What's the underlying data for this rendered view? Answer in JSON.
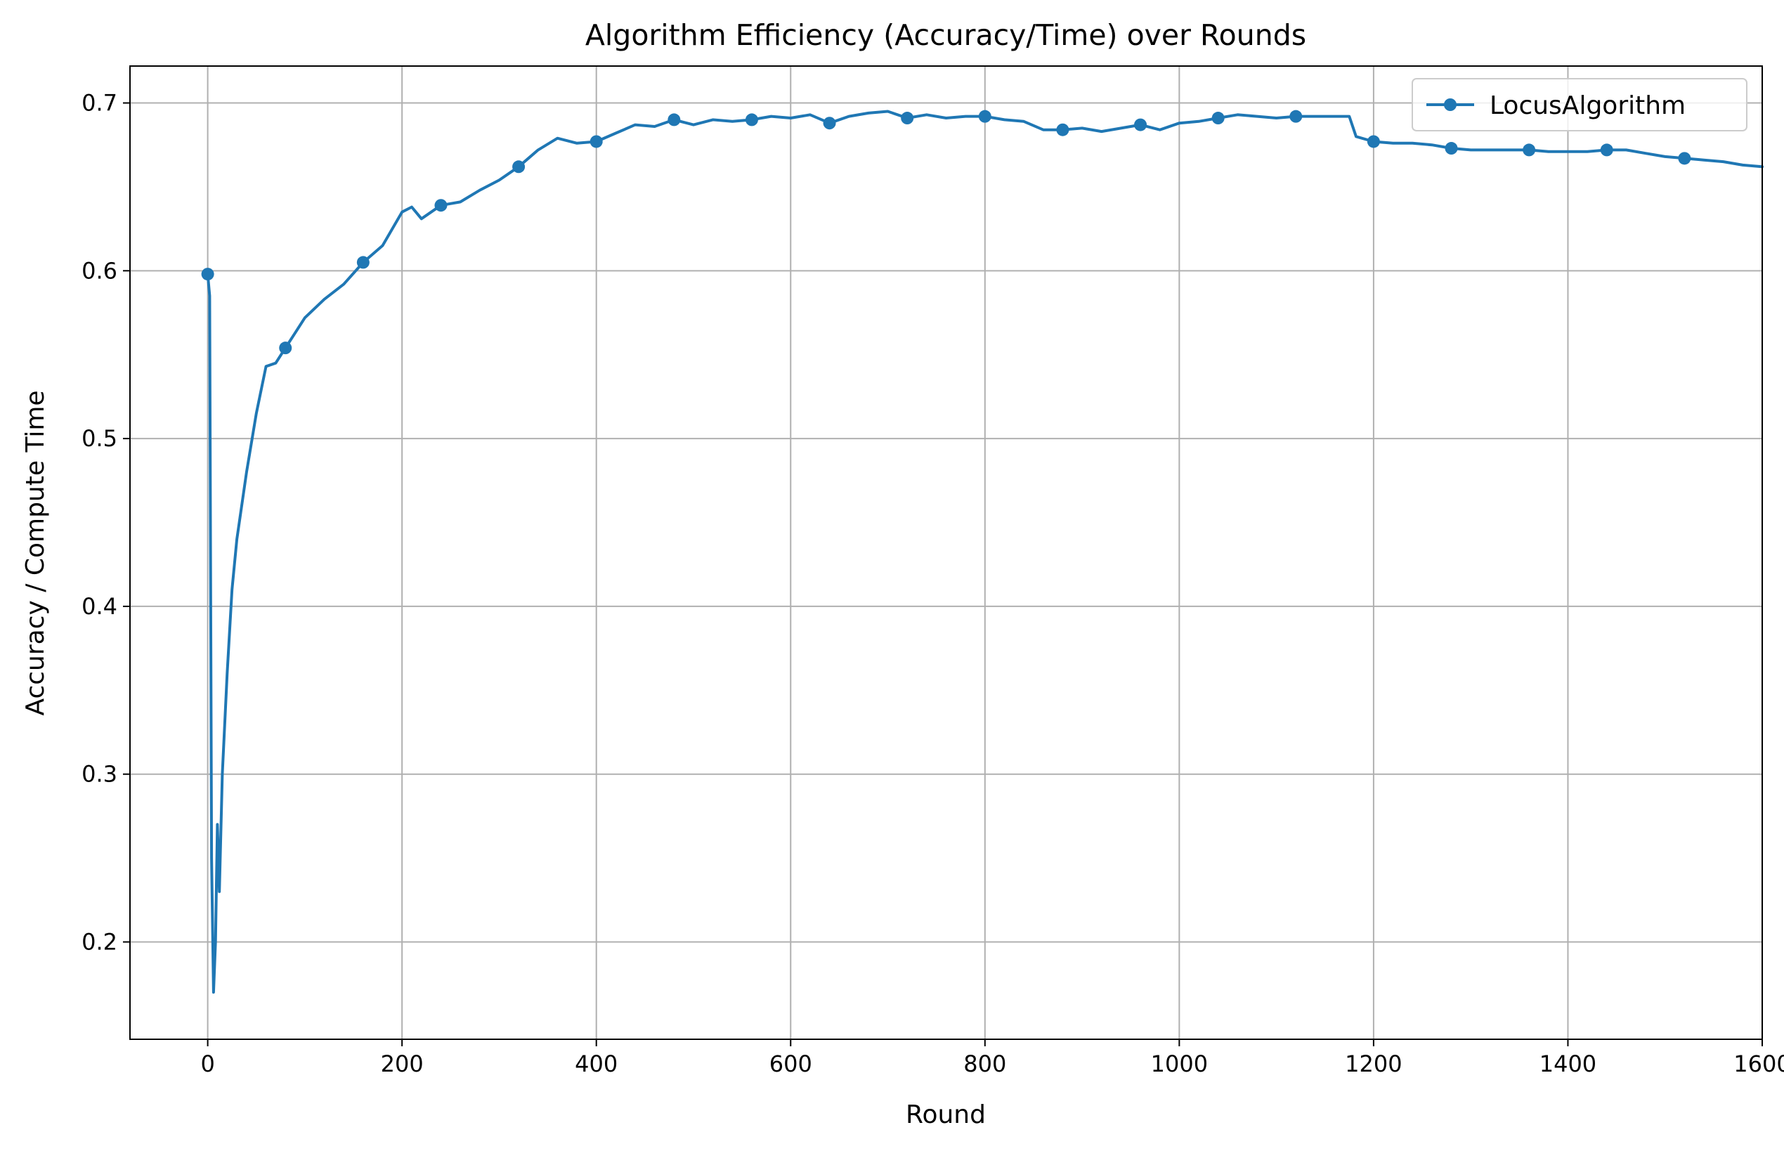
{
  "chart_data": {
    "type": "line",
    "title": "Algorithm Efficiency (Accuracy/Time) over Rounds",
    "xlabel": "Round",
    "ylabel": "Accuracy / Compute Time",
    "xlim": [
      -80,
      1600
    ],
    "ylim": [
      0.142,
      0.722
    ],
    "xticks": [
      0,
      200,
      400,
      600,
      800,
      1000,
      1200,
      1400,
      1600
    ],
    "xtick_labels": [
      "0",
      "200",
      "400",
      "600",
      "800",
      "1000",
      "1200",
      "1400",
      "1600"
    ],
    "yticks": [
      0.2,
      0.3,
      0.4,
      0.5,
      0.6,
      0.7
    ],
    "ytick_labels": [
      "0.2",
      "0.3",
      "0.4",
      "0.5",
      "0.6",
      "0.7"
    ],
    "grid": true,
    "legend_position": "top-right",
    "series": [
      {
        "name": "LocusAlgorithm",
        "color": "#1f77b4",
        "marker_every": 80,
        "points": [
          [
            0,
            0.598
          ],
          [
            2,
            0.585
          ],
          [
            4,
            0.25
          ],
          [
            6,
            0.17
          ],
          [
            8,
            0.2
          ],
          [
            10,
            0.27
          ],
          [
            12,
            0.23
          ],
          [
            15,
            0.3
          ],
          [
            20,
            0.36
          ],
          [
            25,
            0.41
          ],
          [
            30,
            0.44
          ],
          [
            40,
            0.48
          ],
          [
            50,
            0.515
          ],
          [
            60,
            0.543
          ],
          [
            70,
            0.545
          ],
          [
            80,
            0.554
          ],
          [
            90,
            0.563
          ],
          [
            100,
            0.572
          ],
          [
            120,
            0.583
          ],
          [
            140,
            0.592
          ],
          [
            160,
            0.605
          ],
          [
            180,
            0.615
          ],
          [
            200,
            0.635
          ],
          [
            210,
            0.638
          ],
          [
            220,
            0.631
          ],
          [
            240,
            0.639
          ],
          [
            260,
            0.641
          ],
          [
            280,
            0.648
          ],
          [
            300,
            0.654
          ],
          [
            320,
            0.662
          ],
          [
            340,
            0.672
          ],
          [
            360,
            0.679
          ],
          [
            380,
            0.676
          ],
          [
            400,
            0.677
          ],
          [
            420,
            0.682
          ],
          [
            440,
            0.687
          ],
          [
            460,
            0.686
          ],
          [
            480,
            0.69
          ],
          [
            500,
            0.687
          ],
          [
            520,
            0.69
          ],
          [
            540,
            0.689
          ],
          [
            560,
            0.69
          ],
          [
            580,
            0.692
          ],
          [
            600,
            0.691
          ],
          [
            620,
            0.693
          ],
          [
            640,
            0.688
          ],
          [
            660,
            0.692
          ],
          [
            680,
            0.694
          ],
          [
            700,
            0.695
          ],
          [
            720,
            0.691
          ],
          [
            740,
            0.693
          ],
          [
            760,
            0.691
          ],
          [
            780,
            0.692
          ],
          [
            800,
            0.692
          ],
          [
            820,
            0.69
          ],
          [
            840,
            0.689
          ],
          [
            860,
            0.684
          ],
          [
            880,
            0.684
          ],
          [
            900,
            0.685
          ],
          [
            920,
            0.683
          ],
          [
            940,
            0.685
          ],
          [
            960,
            0.687
          ],
          [
            980,
            0.684
          ],
          [
            1000,
            0.688
          ],
          [
            1020,
            0.689
          ],
          [
            1040,
            0.691
          ],
          [
            1060,
            0.693
          ],
          [
            1080,
            0.692
          ],
          [
            1100,
            0.691
          ],
          [
            1120,
            0.692
          ],
          [
            1140,
            0.692
          ],
          [
            1160,
            0.692
          ],
          [
            1175,
            0.692
          ],
          [
            1182,
            0.68
          ],
          [
            1200,
            0.677
          ],
          [
            1220,
            0.676
          ],
          [
            1240,
            0.676
          ],
          [
            1260,
            0.675
          ],
          [
            1280,
            0.673
          ],
          [
            1300,
            0.672
          ],
          [
            1320,
            0.672
          ],
          [
            1340,
            0.672
          ],
          [
            1360,
            0.672
          ],
          [
            1380,
            0.671
          ],
          [
            1400,
            0.671
          ],
          [
            1420,
            0.671
          ],
          [
            1440,
            0.672
          ],
          [
            1460,
            0.672
          ],
          [
            1480,
            0.67
          ],
          [
            1500,
            0.668
          ],
          [
            1520,
            0.667
          ],
          [
            1540,
            0.666
          ],
          [
            1560,
            0.665
          ],
          [
            1580,
            0.663
          ],
          [
            1600,
            0.662
          ]
        ],
        "markers": [
          [
            0,
            0.598
          ],
          [
            80,
            0.554
          ],
          [
            160,
            0.605
          ],
          [
            240,
            0.639
          ],
          [
            320,
            0.662
          ],
          [
            400,
            0.677
          ],
          [
            480,
            0.69
          ],
          [
            560,
            0.69
          ],
          [
            640,
            0.688
          ],
          [
            720,
            0.691
          ],
          [
            800,
            0.692
          ],
          [
            880,
            0.684
          ],
          [
            960,
            0.687
          ],
          [
            1040,
            0.691
          ],
          [
            1120,
            0.692
          ],
          [
            1200,
            0.677
          ],
          [
            1280,
            0.673
          ],
          [
            1360,
            0.672
          ],
          [
            1440,
            0.672
          ],
          [
            1520,
            0.667
          ]
        ]
      }
    ]
  }
}
